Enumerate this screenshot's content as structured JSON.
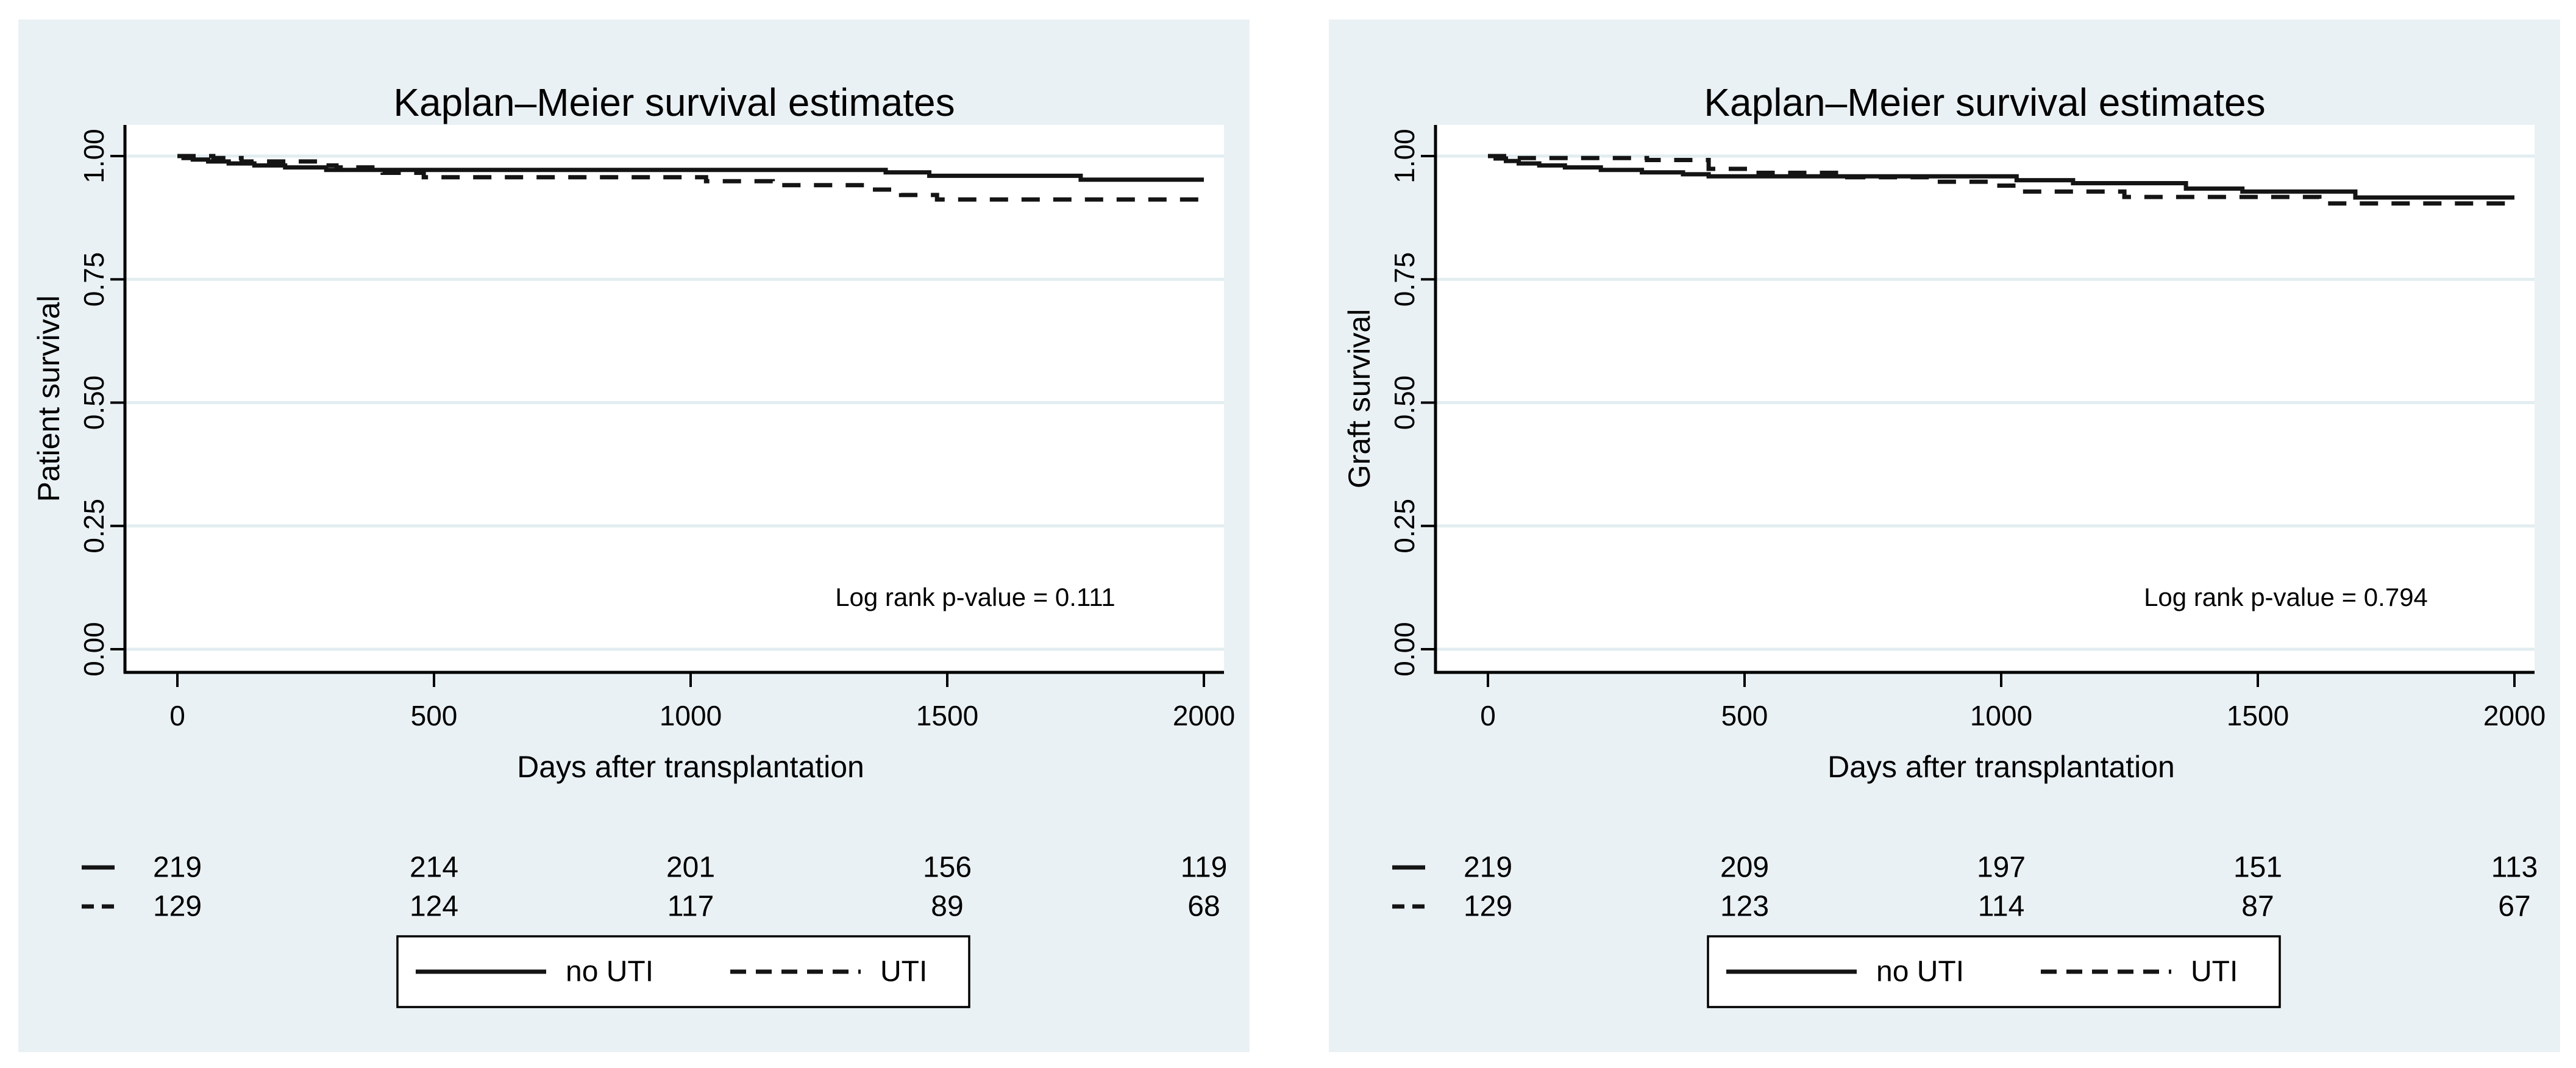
{
  "figure": {
    "background": "#ffffff"
  },
  "style": {
    "panel_bg": "#eaf1f4",
    "plot_bg": "#ffffff",
    "grid_color": "#e2edf0",
    "axis_color": "#000000",
    "curve_color": "#141414",
    "title_color": "#1f3d6d",
    "text_color": "#000000",
    "legend_bg": "#ffffff",
    "legend_border": "#000000"
  },
  "chart_data": [
    {
      "type": "line",
      "subtype": "kaplan-meier-step",
      "title": "Kaplan–Meier survival estimates",
      "xlabel": "Days after transplantation",
      "ylabel": "Patient survival",
      "xlim": [
        0,
        2000
      ],
      "ylim": [
        0.0,
        1.0
      ],
      "x_ticks": [
        "0",
        "500",
        "1000",
        "1500",
        "2000"
      ],
      "x_tick_values": [
        0,
        500,
        1000,
        1500,
        2000
      ],
      "y_ticks": [
        "1.00",
        "0.75",
        "0.50",
        "0.25",
        "0.00"
      ],
      "y_tick_values": [
        1.0,
        0.75,
        0.5,
        0.25,
        0.0
      ],
      "grid": "horizontal",
      "legend_position": "bottom",
      "annotation": "Log rank p-value = 0.111",
      "series": [
        {
          "name": "no UTI",
          "line": "solid",
          "steps": [
            [
              0,
              1.0
            ],
            [
              12,
              0.996
            ],
            [
              30,
              0.993
            ],
            [
              60,
              0.989
            ],
            [
              100,
              0.985
            ],
            [
              150,
              0.981
            ],
            [
              210,
              0.977
            ],
            [
              290,
              0.972
            ],
            [
              1380,
              0.967
            ],
            [
              1465,
              0.96
            ],
            [
              1760,
              0.952
            ],
            [
              2000,
              0.952
            ]
          ]
        },
        {
          "name": "UTI",
          "line": "dashed",
          "steps": [
            [
              0,
              1.0
            ],
            [
              70,
              0.996
            ],
            [
              125,
              0.989
            ],
            [
              290,
              0.981
            ],
            [
              310,
              0.977
            ],
            [
              400,
              0.966
            ],
            [
              480,
              0.957
            ],
            [
              1030,
              0.949
            ],
            [
              1160,
              0.941
            ],
            [
              1350,
              0.932
            ],
            [
              1410,
              0.921
            ],
            [
              1480,
              0.912
            ],
            [
              2000,
              0.912
            ]
          ]
        }
      ],
      "at_risk": [
        {
          "series": "no UTI",
          "marker": "solid",
          "counts": [
            "219",
            "214",
            "201",
            "156",
            "119"
          ]
        },
        {
          "series": "UTI",
          "marker": "dashed",
          "counts": [
            "129",
            "124",
            "117",
            "89",
            "68"
          ]
        }
      ],
      "legend": [
        {
          "label": "no UTI",
          "line": "solid"
        },
        {
          "label": "UTI",
          "line": "dashed"
        }
      ]
    },
    {
      "type": "line",
      "subtype": "kaplan-meier-step",
      "title": "Kaplan–Meier survival estimates",
      "xlabel": "Days after transplantation",
      "ylabel": "Graft survival",
      "xlim": [
        0,
        2000
      ],
      "ylim": [
        0.0,
        1.0
      ],
      "x_ticks": [
        "0",
        "500",
        "1000",
        "1500",
        "2000"
      ],
      "x_tick_values": [
        0,
        500,
        1000,
        1500,
        2000
      ],
      "y_ticks": [
        "1.00",
        "0.75",
        "0.50",
        "0.25",
        "0.00"
      ],
      "y_tick_values": [
        1.0,
        0.75,
        0.5,
        0.25,
        0.0
      ],
      "grid": "horizontal",
      "legend_position": "bottom",
      "annotation": "Log rank p-value = 0.794",
      "series": [
        {
          "name": "no UTI",
          "line": "solid",
          "steps": [
            [
              0,
              1.0
            ],
            [
              15,
              0.995
            ],
            [
              35,
              0.99
            ],
            [
              60,
              0.985
            ],
            [
              100,
              0.981
            ],
            [
              150,
              0.977
            ],
            [
              220,
              0.972
            ],
            [
              300,
              0.967
            ],
            [
              380,
              0.963
            ],
            [
              430,
              0.959
            ],
            [
              1030,
              0.951
            ],
            [
              1140,
              0.945
            ],
            [
              1360,
              0.934
            ],
            [
              1470,
              0.928
            ],
            [
              1690,
              0.916
            ],
            [
              2000,
              0.916
            ]
          ]
        },
        {
          "name": "UTI",
          "line": "dashed",
          "steps": [
            [
              0,
              1.0
            ],
            [
              50,
              0.996
            ],
            [
              310,
              0.992
            ],
            [
              430,
              0.974
            ],
            [
              520,
              0.966
            ],
            [
              700,
              0.957
            ],
            [
              860,
              0.948
            ],
            [
              990,
              0.94
            ],
            [
              1030,
              0.928
            ],
            [
              1240,
              0.917
            ],
            [
              1620,
              0.904
            ],
            [
              2000,
              0.904
            ]
          ]
        }
      ],
      "at_risk": [
        {
          "series": "no UTI",
          "marker": "solid",
          "counts": [
            "219",
            "209",
            "197",
            "151",
            "113"
          ]
        },
        {
          "series": "UTI",
          "marker": "dashed",
          "counts": [
            "129",
            "123",
            "114",
            "87",
            "67"
          ]
        }
      ],
      "legend": [
        {
          "label": "no UTI",
          "line": "solid"
        },
        {
          "label": "UTI",
          "line": "dashed"
        }
      ]
    }
  ]
}
